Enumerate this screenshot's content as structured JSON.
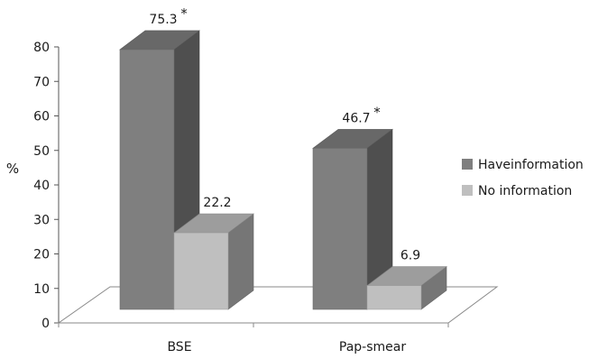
{
  "chart_data": {
    "type": "bar",
    "ylabel": "%",
    "ylim": [
      0,
      80
    ],
    "yticks": [
      0,
      10,
      20,
      30,
      40,
      50,
      60,
      70,
      80
    ],
    "categories": [
      "BSE",
      "Pap-smear"
    ],
    "series": [
      {
        "name": "Haveinformation",
        "color": "#7f7f7f",
        "values": [
          75.3,
          46.7
        ],
        "labels": [
          "75.3",
          "46.7"
        ],
        "marks": [
          "*",
          "*"
        ]
      },
      {
        "name": "No information",
        "color": "#bfbfbf",
        "values": [
          22.2,
          6.9
        ],
        "labels": [
          "22.2",
          "6.9"
        ],
        "marks": [
          "",
          ""
        ]
      }
    ],
    "legend_position": "right",
    "grid": false,
    "style": "3d"
  }
}
